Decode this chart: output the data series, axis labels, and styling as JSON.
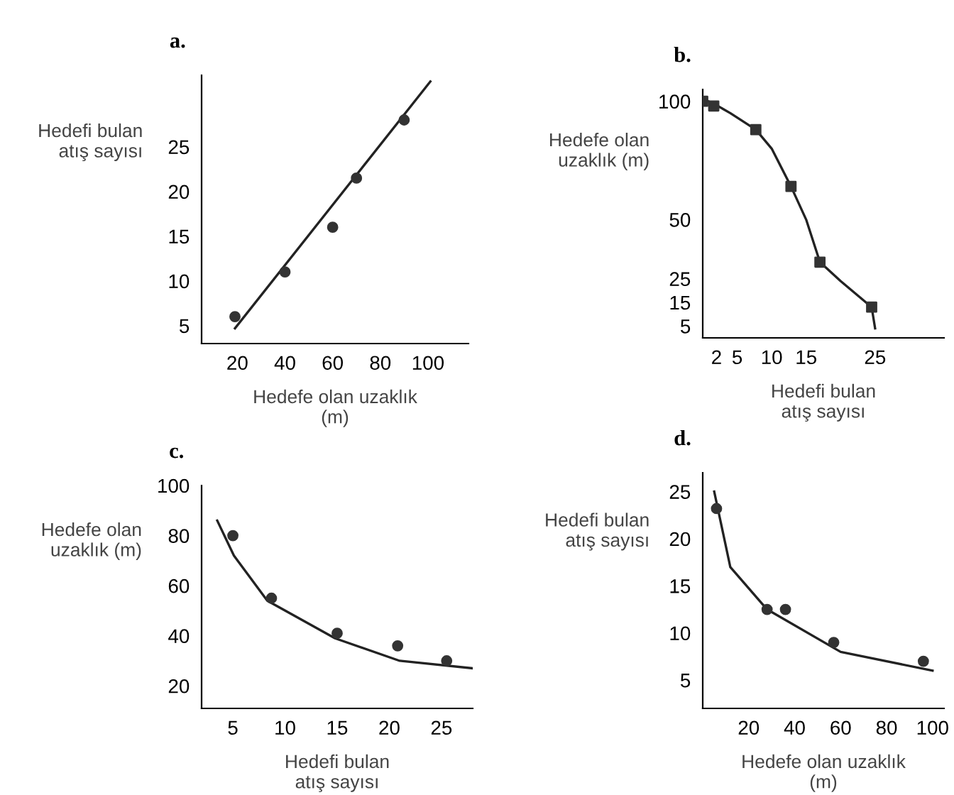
{
  "chart_data": [
    {
      "type": "scatter",
      "title": "a.",
      "xlabel": "Hedefe olan uzaklık\n(m)",
      "ylabel": "Hedefi bulan\natış sayısı",
      "xlim": [
        5,
        117
      ],
      "ylim": [
        3,
        33
      ],
      "xticks": [
        20,
        40,
        60,
        80,
        100
      ],
      "yticks": [
        5,
        10,
        15,
        20,
        25
      ],
      "grid": false,
      "legend": false,
      "series": [
        {
          "marker": "circle",
          "color": "#333333",
          "x": [
            19,
            40,
            60,
            70,
            90
          ],
          "values": [
            6,
            11,
            16,
            21.5,
            28
          ]
        },
        {
          "type": "line",
          "color": "#222222",
          "line_style": "solid",
          "x": [
            19,
            101
          ],
          "values": [
            4.7,
            32.3
          ]
        }
      ]
    },
    {
      "type": "scatter",
      "title": "b.",
      "xlabel": "Hedefi bulan\natış sayısı",
      "ylabel": "Hedefe olan\nuzaklık (m)",
      "xlim": [
        0,
        35
      ],
      "ylim": [
        0,
        105
      ],
      "xticks": [
        2,
        5,
        10,
        15,
        25
      ],
      "yticks": [
        5,
        15,
        25,
        50,
        100
      ],
      "grid": false,
      "legend": false,
      "series": [
        {
          "marker": "square",
          "color": "#333333",
          "x": [
            0,
            1.6,
            7.7,
            12.8,
            17,
            24.5
          ],
          "values": [
            100,
            98,
            88,
            64,
            32,
            13
          ]
        },
        {
          "type": "line",
          "color": "#222222",
          "line_style": "solid",
          "x": [
            0,
            1.6,
            4,
            7.7,
            10,
            12.8,
            15,
            17,
            20,
            24.5,
            25
          ],
          "values": [
            101,
            99,
            95,
            88,
            80,
            64,
            50,
            32,
            24,
            13,
            4
          ]
        }
      ]
    },
    {
      "type": "scatter",
      "title": "c.",
      "xlabel": "Hedefi bulan\natış sayısı",
      "ylabel": "Hedefe olan\nuzaklık (m)",
      "xlim": [
        2,
        28
      ],
      "ylim": [
        11,
        100
      ],
      "xticks": [
        5,
        10,
        15,
        20,
        25
      ],
      "yticks": [
        20,
        40,
        60,
        80,
        100
      ],
      "grid": false,
      "legend": false,
      "series": [
        {
          "marker": "circle",
          "color": "#333333",
          "x": [
            5,
            8.7,
            15,
            20.8,
            25.5
          ],
          "values": [
            80,
            55,
            41,
            36,
            30
          ]
        },
        {
          "type": "line",
          "color": "#222222",
          "line_style": "solid",
          "x": [
            3.5,
            5.1,
            8.3,
            14.8,
            21,
            28
          ],
          "values": [
            86,
            72,
            54,
            39,
            30,
            27
          ]
        }
      ]
    },
    {
      "type": "scatter",
      "title": "d.",
      "xlabel": "Hedefe olan uzaklık\n(m)",
      "ylabel": "Hedefi bulan\natış sayısı",
      "xlim": [
        0,
        105
      ],
      "ylim": [
        2,
        27
      ],
      "xticks": [
        20,
        40,
        60,
        80,
        100
      ],
      "yticks": [
        5,
        10,
        15,
        20,
        25
      ],
      "grid": false,
      "legend": false,
      "series": [
        {
          "marker": "circle",
          "color": "#333333",
          "x": [
            6,
            28,
            36,
            57,
            96
          ],
          "values": [
            23.2,
            12.5,
            12.5,
            9,
            7
          ]
        },
        {
          "type": "line",
          "color": "#222222",
          "line_style": "solid",
          "x": [
            5,
            12,
            28,
            60,
            100
          ],
          "values": [
            25,
            17,
            12.5,
            8,
            6
          ]
        }
      ]
    }
  ]
}
